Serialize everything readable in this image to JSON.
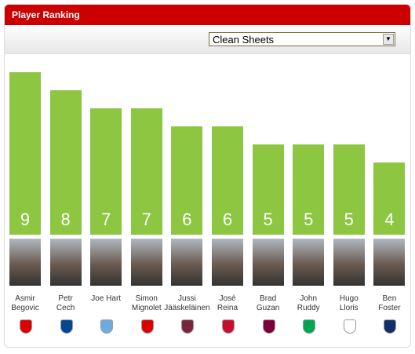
{
  "header": {
    "title": "Player Ranking",
    "dropdown": "Clean Sheets"
  },
  "chart_data": {
    "type": "bar",
    "categories": [
      "Asmir\nBegovic",
      "Petr\nCech",
      "Joe Hart",
      "Simon\nMignolet",
      "Jussi\nJääskeläinen",
      "José\nReina",
      "Brad\nGuzan",
      "John\nRuddy",
      "Hugo\nLloris",
      "Ben\nFoster"
    ],
    "values": [
      9,
      8,
      7,
      7,
      6,
      6,
      5,
      5,
      5,
      4
    ],
    "color": "#8dc641"
  }
}
